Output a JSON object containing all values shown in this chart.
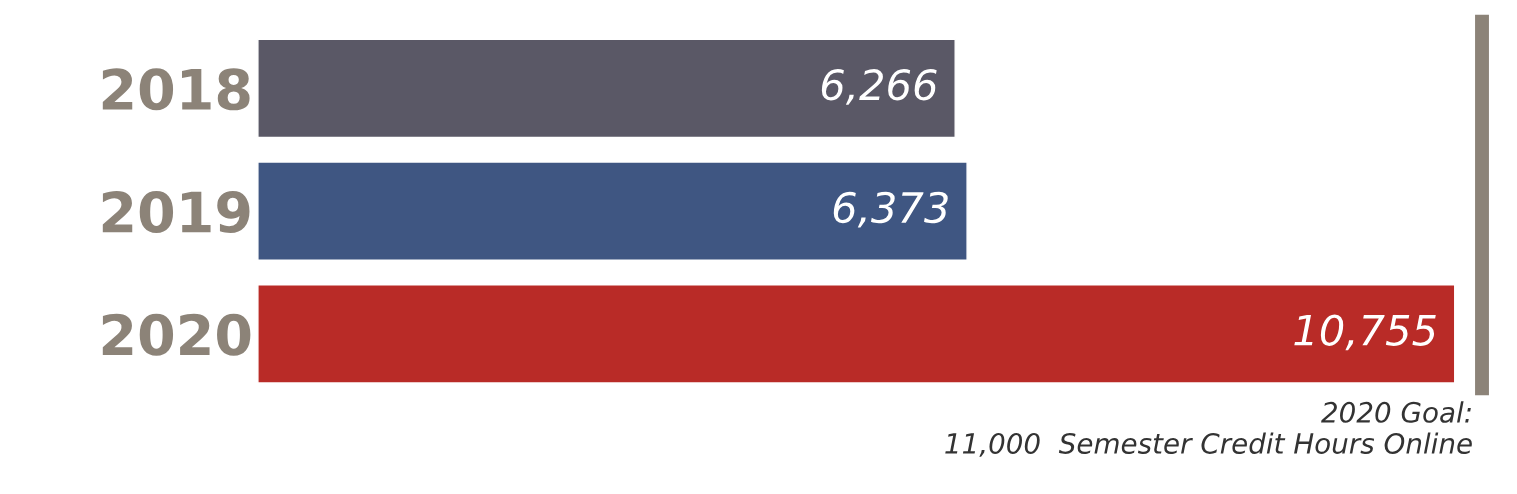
{
  "chart_data": {
    "type": "bar",
    "orientation": "horizontal",
    "categories": [
      "2018",
      "2019",
      "2020"
    ],
    "values": [
      6266,
      6373,
      10755
    ],
    "colors": [
      "#5a5866",
      "#3f5682",
      "#b92b27"
    ],
    "value_labels": [
      "6,266",
      "6,373",
      "10,755"
    ],
    "tick_labels": "y",
    "grid": false,
    "ref_lines": [
      {
        "axis": "x",
        "value": 11000,
        "label": "2020 Goal:\n11,000  Semester Credit Hours Online",
        "color": "#8c8378"
      }
    ]
  }
}
